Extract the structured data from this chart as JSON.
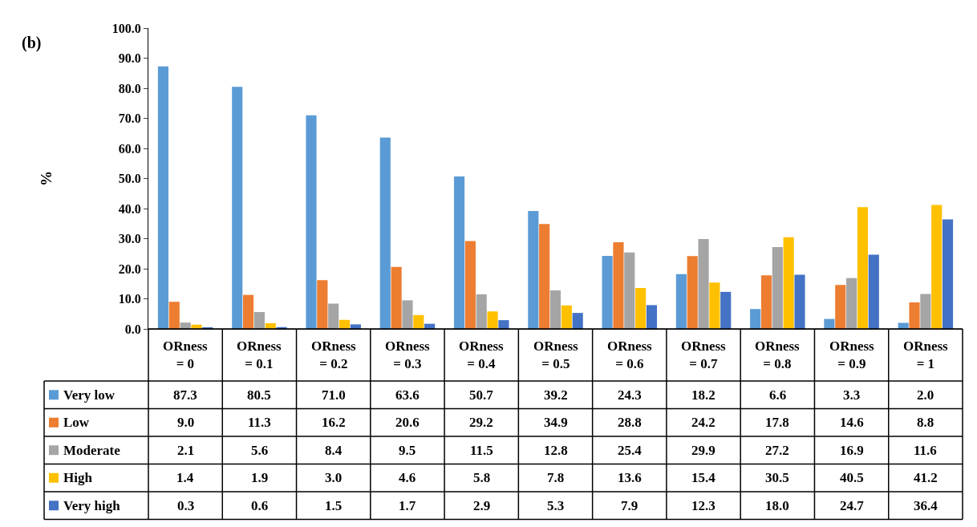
{
  "chart_data": {
    "type": "bar",
    "title": "(b)",
    "ylabel": "%",
    "categories": [
      "ORness = 0",
      "ORness = 0.1",
      "ORness = 0.2",
      "ORness = 0.3",
      "ORness = 0.4",
      "ORness = 0.5",
      "ORness = 0.6",
      "ORness = 0.7",
      "ORness = 0.8",
      "ORness = 0.9",
      "ORness = 1"
    ],
    "series": [
      {
        "name": "Very low",
        "color": "#5b9bd5",
        "values": [
          87.3,
          80.5,
          71.0,
          63.6,
          50.7,
          39.2,
          24.3,
          18.2,
          6.6,
          3.3,
          2.0
        ],
        "value_labels": [
          "87.3",
          "80.5",
          "71.0",
          "63.6",
          "50.7",
          "39.2",
          "24.3",
          "18.2",
          "6.6",
          "3.3",
          "2.0"
        ]
      },
      {
        "name": "Low",
        "color": "#ed7d31",
        "values": [
          9.0,
          11.3,
          16.2,
          20.6,
          29.2,
          34.9,
          28.8,
          24.2,
          17.8,
          14.6,
          8.8
        ],
        "value_labels": [
          "9.0",
          "11.3",
          "16.2",
          "20.6",
          "29.2",
          "34.9",
          "28.8",
          "24.2",
          "17.8",
          "14.6",
          "8.8"
        ]
      },
      {
        "name": "Moderate",
        "color": "#a5a5a5",
        "values": [
          2.1,
          5.6,
          8.4,
          9.5,
          11.5,
          12.8,
          25.4,
          29.9,
          27.2,
          16.9,
          11.6
        ],
        "value_labels": [
          "2.1",
          "5.6",
          "8.4",
          "9.5",
          "11.5",
          "12.8",
          "25.4",
          "29.9",
          "27.2",
          "16.9",
          "11.6"
        ]
      },
      {
        "name": "High",
        "color": "#ffc000",
        "values": [
          1.4,
          1.9,
          3.0,
          4.6,
          5.8,
          7.8,
          13.6,
          15.4,
          30.5,
          40.5,
          41.2
        ],
        "value_labels": [
          "1.4",
          "1.9",
          "3.0",
          "4.6",
          "5.8",
          "7.8",
          "13.6",
          "15.4",
          "30.5",
          "40.5",
          "41.2"
        ]
      },
      {
        "name": "Very high",
        "color": "#4472c4",
        "values": [
          0.3,
          0.6,
          1.5,
          1.7,
          2.9,
          5.3,
          7.9,
          12.3,
          18.0,
          24.7,
          36.4
        ],
        "value_labels": [
          "0.3",
          "0.6",
          "1.5",
          "1.7",
          "2.9",
          "5.3",
          "7.9",
          "12.3",
          "18.0",
          "24.7",
          "36.4"
        ]
      }
    ],
    "ylim": [
      0,
      100
    ],
    "yticks": [
      {
        "value": 0,
        "label": "0.0"
      },
      {
        "value": 10,
        "label": "10.0"
      },
      {
        "value": 20,
        "label": "20.0"
      },
      {
        "value": 30,
        "label": "30.0"
      },
      {
        "value": 40,
        "label": "40.0"
      },
      {
        "value": 50,
        "label": "50.0"
      },
      {
        "value": 60,
        "label": "60.0"
      },
      {
        "value": 70,
        "label": "70.0"
      },
      {
        "value": 80,
        "label": "80.0"
      },
      {
        "value": 90,
        "label": "90.0"
      },
      {
        "value": 100,
        "label": "100.0"
      }
    ],
    "legend": "bottom left",
    "tick_labels": "y"
  }
}
